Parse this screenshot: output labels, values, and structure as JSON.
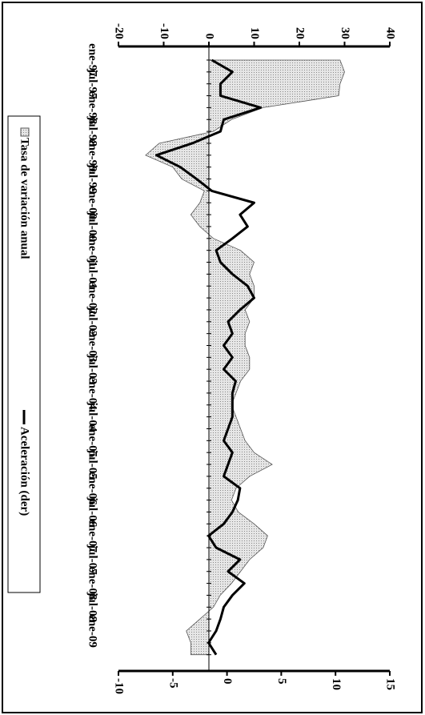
{
  "chart_data": {
    "type": "line",
    "categories": [
      "ene-97",
      null,
      "jul-97",
      null,
      "ene-98",
      null,
      "jul-98",
      null,
      "ene-99",
      null,
      "jul-99",
      null,
      "ene-00",
      null,
      "jul-00",
      null,
      "ene-01",
      null,
      "jul-01",
      null,
      "ene-02",
      null,
      "jul-02",
      null,
      "ene-03",
      null,
      "jul-03",
      null,
      "ene-04",
      null,
      "jul-04",
      null,
      "ene-05",
      null,
      "jul-05",
      null,
      "ene-06",
      null,
      "jul-06",
      null,
      "ene-07",
      null,
      "jul-07",
      null,
      "ene-08",
      null,
      "jul-08",
      null,
      "ene-09",
      null,
      null
    ],
    "series": [
      {
        "name": "Tasa de variación anual",
        "type": "area",
        "color": "#d9d9d9",
        "values": [
          29,
          30,
          29,
          28.7,
          12,
          5,
          1,
          -11,
          -14,
          -8,
          -6,
          -1,
          -2,
          -4,
          -2,
          1,
          7,
          10,
          9,
          10,
          10,
          8,
          9,
          8,
          8,
          9,
          9,
          7,
          6,
          5,
          6,
          7,
          8,
          10,
          14,
          9,
          6,
          5,
          6.5,
          10,
          13,
          12,
          9,
          7,
          5,
          2.5,
          1,
          -2,
          -5,
          -4,
          -4
        ]
      },
      {
        "name": "Aceleración (der)",
        "type": "line",
        "axis": "y2",
        "color": "#000000",
        "values": [
          -1.4,
          0.5,
          -0.6,
          -0.6,
          3.1,
          -0.3,
          -0.6,
          -3.2,
          -6.5,
          -4.3,
          -2.8,
          -1.4,
          2.5,
          1.2,
          1.9,
          0.5,
          -1,
          -0.6,
          0.5,
          1.9,
          2.5,
          1.2,
          0.1,
          0.5,
          -0.3,
          0.5,
          -0.3,
          0.8,
          0.5,
          0.5,
          0.5,
          0.1,
          -0.3,
          0.5,
          0.1,
          -0.3,
          1.2,
          1,
          0.5,
          -0.3,
          -1.7,
          -1,
          1.2,
          0.1,
          1.6,
          0.5,
          -0.3,
          -0.6,
          -1,
          -1.7,
          -1
        ]
      }
    ],
    "ylim": [
      -20,
      40
    ],
    "yticks": [
      -20,
      -10,
      0,
      10,
      20,
      30,
      40
    ],
    "y2lim": [
      -10,
      15
    ],
    "y2ticks": [
      -10,
      -5,
      0,
      5,
      10,
      15
    ]
  }
}
